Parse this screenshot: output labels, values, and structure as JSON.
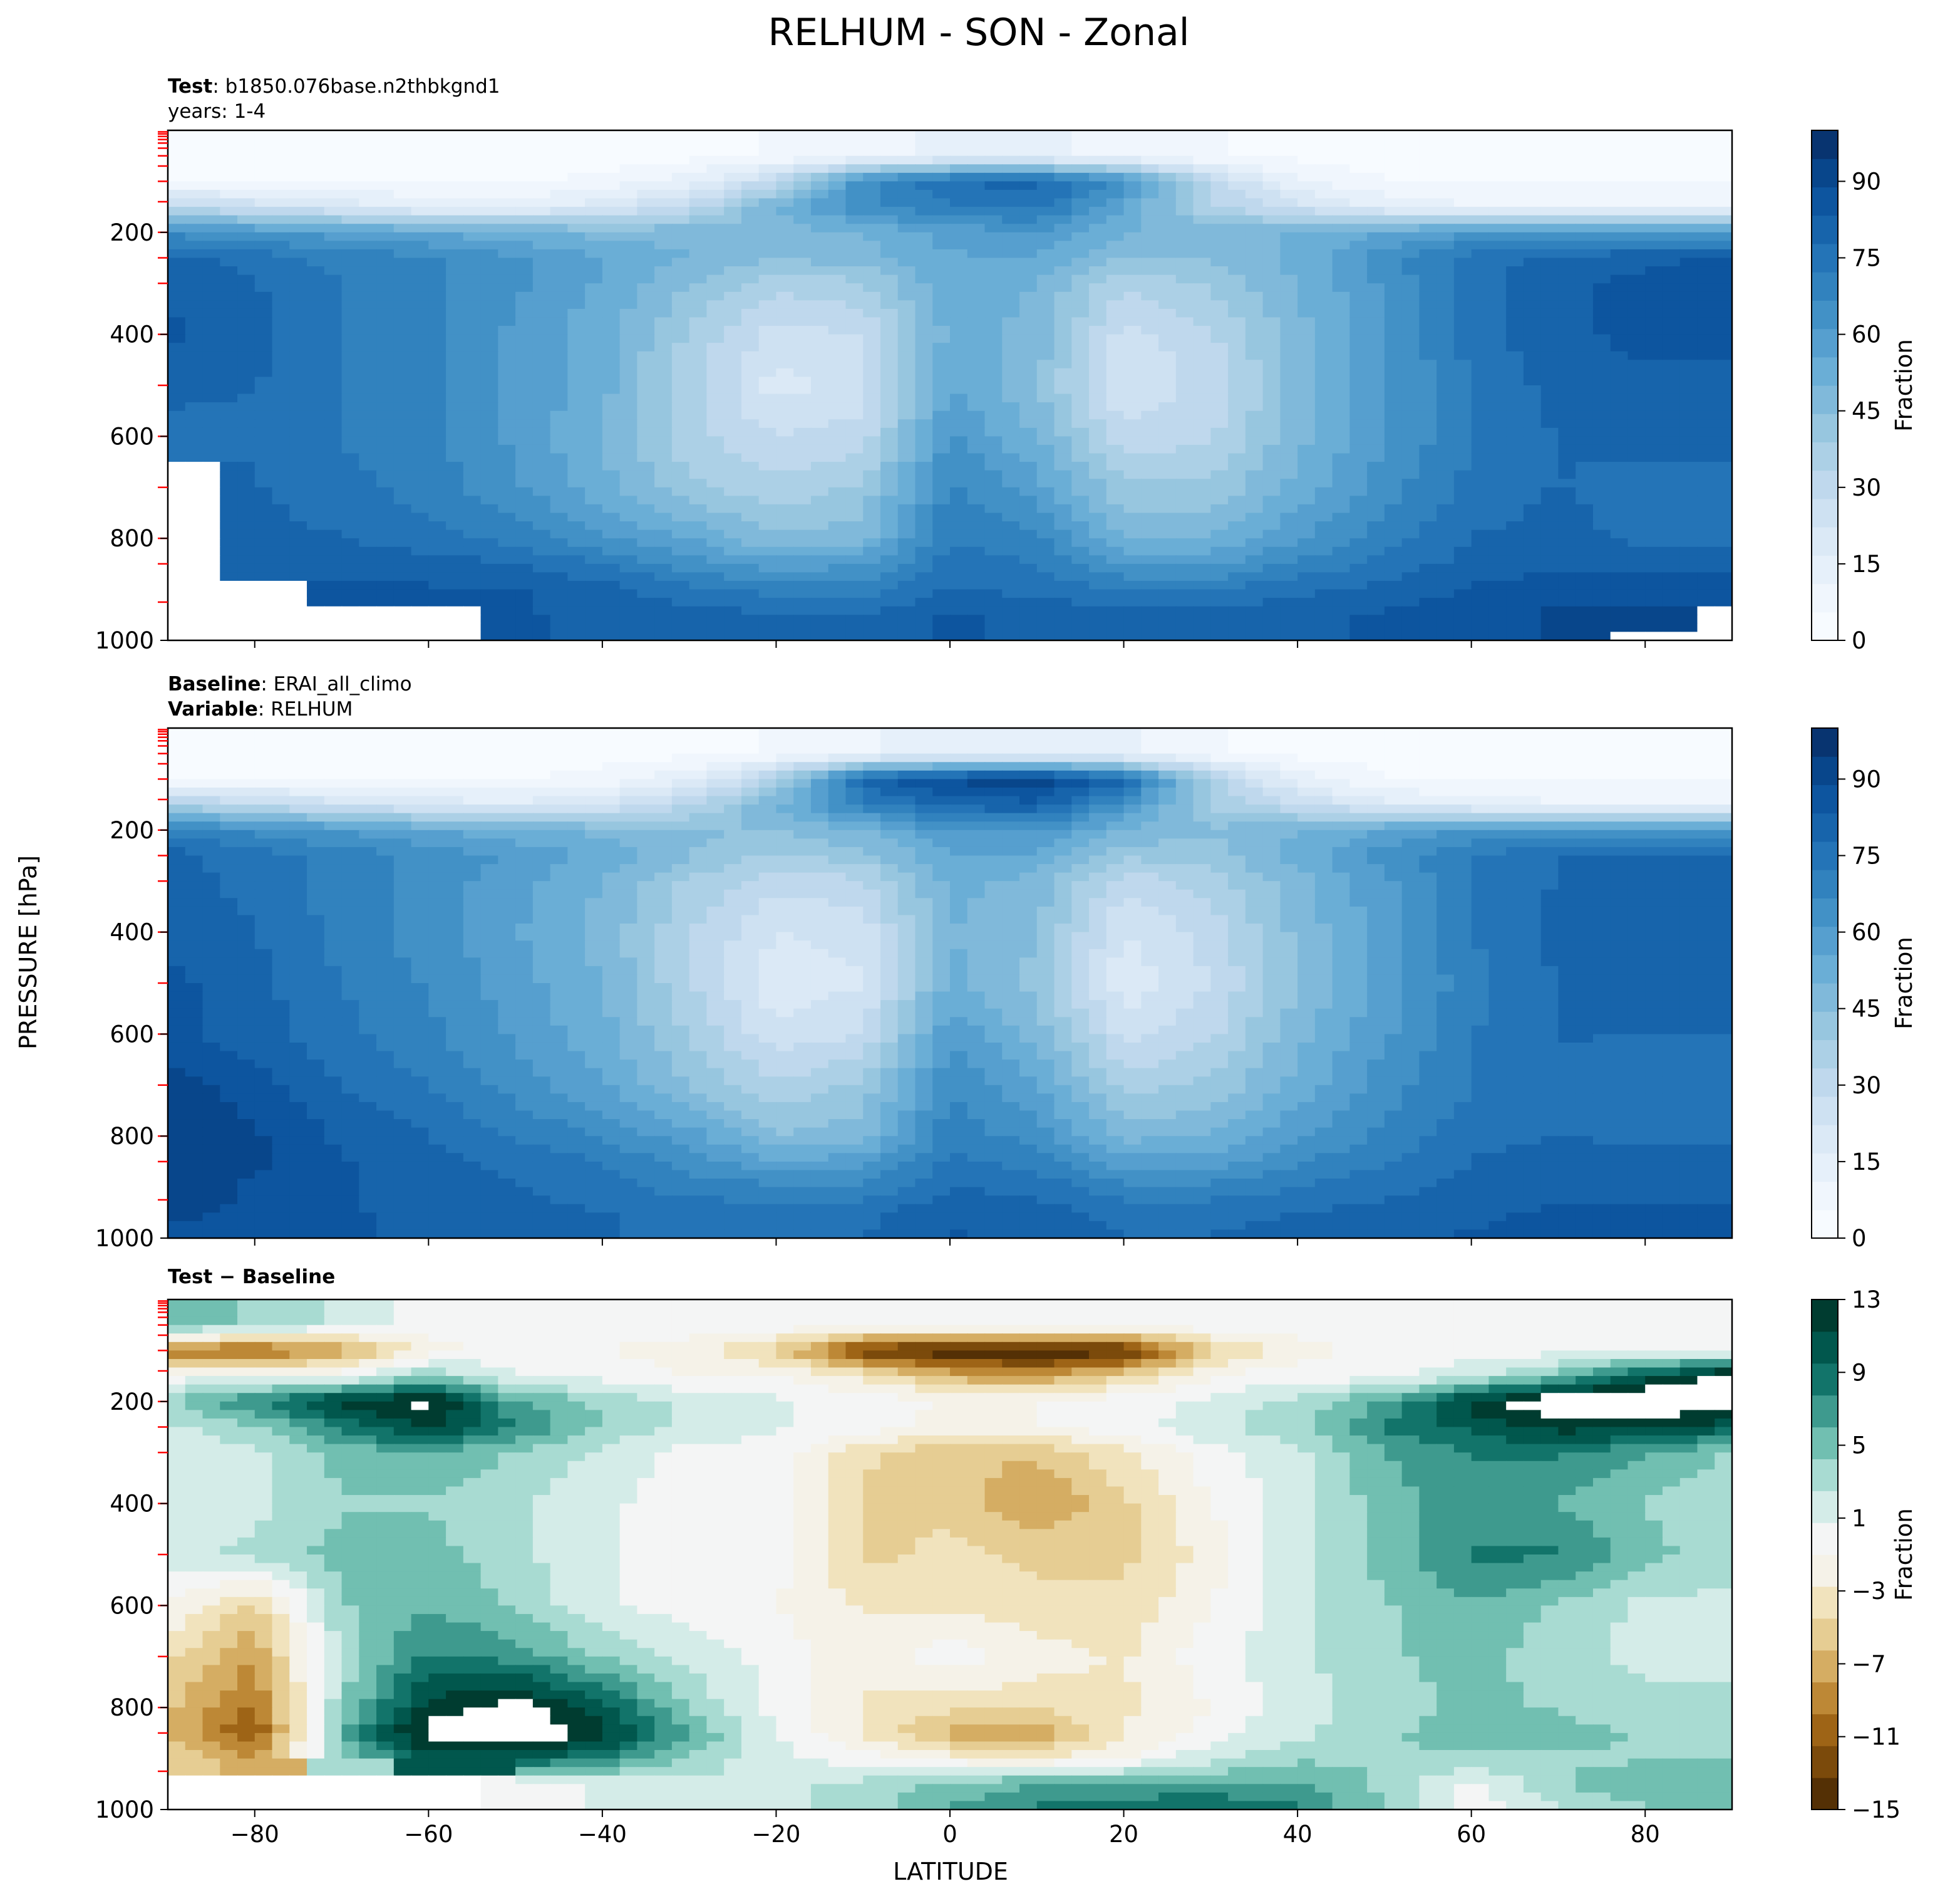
{
  "figure_title": "RELHUM - SON - Zonal",
  "y_axis_label": "PRESSURE [hPa]",
  "x_axis_label": "LATITUDE",
  "colors": {
    "blues": [
      "#f7fbff",
      "#f0f6fd",
      "#e6f0fa",
      "#dbe9f6",
      "#cee1f2",
      "#bfd8ed",
      "#acd0e6",
      "#97c6df",
      "#80b9da",
      "#6aaed6",
      "#569fcf",
      "#4291c6",
      "#3182be",
      "#2474b7",
      "#1764ab",
      "#0d559f",
      "#08468b",
      "#083470"
    ],
    "brbg": [
      "#543005",
      "#7b4a0b",
      "#9e6416",
      "#bd8836",
      "#d5ad63",
      "#e6cd93",
      "#f1e3bd",
      "#f5f2e8",
      "#f4f5f5",
      "#d4ece8",
      "#a8dbd2",
      "#71bfb1",
      "#3e9a8e",
      "#12746a",
      "#01574d",
      "#003c30"
    ],
    "masked_color": "#ffffff",
    "tick_marker_color": "#ff0000"
  },
  "panels": [
    {
      "title_bold": "Test",
      "title_text": ": b1850.076base.n2thbkgnd1",
      "title_line2": "years: 1-4",
      "title_line2_bold": "",
      "title_line2_text": "",
      "colorbar_label": "Fraction",
      "colorbar_ticks": [
        "0",
        "15",
        "30",
        "45",
        "60",
        "75",
        "90"
      ],
      "x_ticks_labeled": false
    },
    {
      "title_bold": "Baseline",
      "title_text": ": ERAI_all_climo",
      "title_line2": "",
      "title_line2_bold": "Variable",
      "title_line2_text": ": RELHUM",
      "colorbar_label": "Fraction",
      "colorbar_ticks": [
        "0",
        "15",
        "30",
        "45",
        "60",
        "75",
        "90"
      ],
      "x_ticks_labeled": false
    },
    {
      "title_bold": "Test − Baseline",
      "title_text": "",
      "title_line2": "",
      "title_line2_bold": "",
      "title_line2_text": "",
      "colorbar_label": "Fraction",
      "colorbar_ticks": [
        "13",
        "9",
        "5",
        "1",
        "−3",
        "−7",
        "−11",
        "−15"
      ],
      "x_ticks_labeled": true
    }
  ],
  "chart_data": [
    {
      "type": "heatmap",
      "name": "Test",
      "xlim": [
        -90,
        90
      ],
      "ylim": [
        1000,
        0
      ],
      "y_ticks": [
        200,
        400,
        600,
        800,
        1000
      ],
      "x_ticks": [
        -80,
        -60,
        -40,
        -20,
        0,
        20,
        40,
        60,
        80
      ],
      "colorbar_range": [
        0,
        100
      ],
      "latitude": [
        -90,
        -80,
        -70,
        -60,
        -50,
        -40,
        -30,
        -20,
        -10,
        0,
        10,
        20,
        30,
        40,
        50,
        60,
        70,
        80,
        90
      ],
      "pressure": [
        50,
        100,
        150,
        200,
        250,
        300,
        400,
        500,
        600,
        700,
        800,
        850,
        900,
        950,
        1000
      ],
      "values": [
        [
          3,
          3,
          3,
          3,
          3,
          3,
          4,
          6,
          10,
          12,
          12,
          10,
          6,
          4,
          3,
          3,
          3,
          3,
          3
        ],
        [
          6,
          6,
          5,
          5,
          5,
          7,
          14,
          30,
          65,
          78,
          80,
          65,
          30,
          12,
          6,
          5,
          5,
          5,
          5
        ],
        [
          30,
          25,
          20,
          15,
          15,
          20,
          30,
          50,
          65,
          72,
          75,
          55,
          35,
          25,
          15,
          12,
          10,
          10,
          10
        ],
        [
          65,
          62,
          58,
          55,
          52,
          48,
          48,
          48,
          50,
          58,
          60,
          50,
          48,
          50,
          55,
          60,
          62,
          60,
          58
        ],
        [
          80,
          75,
          70,
          68,
          62,
          55,
          50,
          45,
          48,
          55,
          55,
          45,
          45,
          52,
          65,
          75,
          80,
          82,
          85
        ],
        [
          82,
          78,
          72,
          68,
          62,
          55,
          45,
          35,
          38,
          55,
          50,
          35,
          40,
          50,
          62,
          75,
          82,
          85,
          85
        ],
        [
          85,
          80,
          72,
          68,
          60,
          52,
          38,
          25,
          28,
          52,
          48,
          25,
          32,
          48,
          60,
          75,
          82,
          85,
          85
        ],
        [
          80,
          78,
          72,
          68,
          60,
          52,
          35,
          20,
          25,
          55,
          45,
          22,
          30,
          46,
          60,
          72,
          80,
          82,
          82
        ],
        [
          75,
          76,
          72,
          68,
          60,
          50,
          35,
          28,
          30,
          62,
          50,
          30,
          32,
          48,
          60,
          72,
          78,
          80,
          80
        ],
        [
          null,
          78,
          74,
          70,
          62,
          52,
          40,
          35,
          40,
          68,
          58,
          40,
          40,
          52,
          64,
          74,
          78,
          75,
          75
        ],
        [
          null,
          80,
          78,
          74,
          70,
          62,
          55,
          45,
          48,
          72,
          68,
          50,
          50,
          60,
          70,
          78,
          80,
          76,
          76
        ],
        [
          null,
          82,
          82,
          80,
          78,
          72,
          64,
          58,
          60,
          75,
          72,
          60,
          60,
          68,
          74,
          80,
          82,
          82,
          82
        ],
        [
          null,
          null,
          84,
          84,
          84,
          80,
          74,
          70,
          70,
          78,
          76,
          72,
          72,
          76,
          80,
          84,
          86,
          86,
          86
        ],
        [
          null,
          null,
          null,
          null,
          84,
          82,
          80,
          78,
          78,
          84,
          82,
          80,
          80,
          82,
          84,
          86,
          90,
          90,
          null
        ],
        [
          null,
          null,
          null,
          null,
          84,
          82,
          80,
          80,
          80,
          84,
          82,
          80,
          80,
          82,
          84,
          86,
          90,
          null,
          null
        ]
      ]
    },
    {
      "type": "heatmap",
      "name": "Baseline",
      "xlim": [
        -90,
        90
      ],
      "ylim": [
        1000,
        0
      ],
      "y_ticks": [
        200,
        400,
        600,
        800,
        1000
      ],
      "x_ticks": [
        -80,
        -60,
        -40,
        -20,
        0,
        20,
        40,
        60,
        80
      ],
      "colorbar_range": [
        0,
        100
      ],
      "latitude": [
        -90,
        -80,
        -70,
        -60,
        -50,
        -40,
        -30,
        -20,
        -10,
        0,
        10,
        20,
        30,
        40,
        50,
        60,
        70,
        80,
        90
      ],
      "pressure": [
        50,
        100,
        150,
        200,
        250,
        300,
        400,
        500,
        600,
        700,
        800,
        850,
        900,
        950,
        1000
      ],
      "values": [
        [
          3,
          3,
          3,
          3,
          3,
          3,
          4,
          6,
          10,
          14,
          14,
          12,
          6,
          4,
          3,
          3,
          3,
          3,
          3
        ],
        [
          6,
          6,
          5,
          5,
          5,
          8,
          15,
          35,
          80,
          90,
          92,
          80,
          35,
          14,
          6,
          5,
          5,
          5,
          5
        ],
        [
          35,
          30,
          25,
          20,
          18,
          22,
          32,
          50,
          70,
          80,
          82,
          62,
          38,
          28,
          18,
          14,
          12,
          12,
          12
        ],
        [
          70,
          65,
          60,
          55,
          52,
          48,
          45,
          45,
          50,
          62,
          62,
          50,
          45,
          50,
          56,
          62,
          64,
          62,
          60
        ],
        [
          80,
          75,
          70,
          65,
          60,
          54,
          45,
          38,
          42,
          55,
          55,
          40,
          42,
          52,
          64,
          72,
          78,
          80,
          80
        ],
        [
          80,
          76,
          70,
          64,
          58,
          50,
          38,
          30,
          32,
          52,
          48,
          30,
          36,
          48,
          60,
          72,
          78,
          80,
          80
        ],
        [
          82,
          78,
          70,
          64,
          56,
          48,
          34,
          22,
          24,
          50,
          45,
          22,
          30,
          46,
          58,
          72,
          80,
          82,
          82
        ],
        [
          85,
          80,
          72,
          66,
          58,
          50,
          34,
          18,
          22,
          52,
          42,
          18,
          28,
          44,
          58,
          70,
          78,
          80,
          80
        ],
        [
          85,
          80,
          74,
          68,
          60,
          52,
          38,
          24,
          28,
          60,
          48,
          26,
          32,
          48,
          60,
          72,
          78,
          78,
          78
        ],
        [
          92,
          86,
          78,
          72,
          64,
          56,
          44,
          34,
          40,
          66,
          56,
          36,
          40,
          52,
          64,
          72,
          76,
          74,
          74
        ],
        [
          94,
          90,
          82,
          78,
          72,
          66,
          58,
          45,
          48,
          70,
          64,
          48,
          50,
          60,
          68,
          76,
          78,
          76,
          76
        ],
        [
          94,
          90,
          84,
          80,
          76,
          72,
          64,
          56,
          58,
          74,
          70,
          58,
          58,
          66,
          72,
          78,
          80,
          80,
          80
        ],
        [
          92,
          88,
          84,
          80,
          78,
          74,
          70,
          68,
          68,
          78,
          76,
          68,
          68,
          72,
          76,
          80,
          82,
          82,
          82
        ],
        [
          90,
          88,
          84,
          82,
          80,
          78,
          76,
          74,
          76,
          82,
          80,
          76,
          76,
          78,
          80,
          82,
          84,
          84,
          84
        ],
        [
          88,
          86,
          84,
          82,
          80,
          78,
          76,
          76,
          78,
          84,
          82,
          78,
          78,
          80,
          82,
          84,
          86,
          88,
          88
        ]
      ]
    },
    {
      "type": "heatmap",
      "name": "Test − Baseline",
      "xlim": [
        -90,
        90
      ],
      "ylim": [
        1000,
        0
      ],
      "y_ticks": [
        200,
        400,
        600,
        800,
        1000
      ],
      "x_ticks": [
        -80,
        -60,
        -40,
        -20,
        0,
        20,
        40,
        60,
        80
      ],
      "colorbar_range": [
        -15,
        13
      ],
      "latitude": [
        -90,
        -80,
        -70,
        -60,
        -50,
        -40,
        -30,
        -20,
        -10,
        0,
        10,
        20,
        30,
        40,
        50,
        60,
        70,
        80,
        90
      ],
      "pressure": [
        50,
        100,
        150,
        200,
        250,
        300,
        400,
        500,
        600,
        700,
        800,
        850,
        900,
        950,
        1000
      ],
      "values": [
        [
          6,
          4,
          2,
          0,
          0,
          0,
          0,
          0,
          0,
          0,
          0,
          0,
          0,
          0,
          0,
          0,
          0,
          0,
          0
        ],
        [
          -10,
          -11,
          -8,
          -2,
          0,
          -1,
          -2,
          -5,
          -13,
          -15,
          -16,
          -14,
          -5,
          -2,
          0,
          0,
          0,
          0,
          0
        ],
        [
          0,
          0,
          0,
          4,
          1,
          0,
          -1,
          -1,
          -3,
          -7,
          -8,
          -5,
          -1,
          0,
          0,
          2,
          5,
          10,
          14
        ],
        [
          4,
          8,
          12,
          14,
          6,
          4,
          2,
          1,
          0,
          -1,
          -1,
          0,
          1,
          3,
          6,
          12,
          15,
          16,
          14
        ],
        [
          2,
          4,
          8,
          12,
          8,
          4,
          2,
          1,
          0,
          -2,
          -1,
          0,
          2,
          4,
          8,
          10,
          12,
          12,
          10
        ],
        [
          1,
          2,
          5,
          6,
          4,
          2,
          0,
          0,
          -4,
          -6,
          -6,
          -3,
          0,
          2,
          6,
          8,
          8,
          6,
          4
        ],
        [
          1,
          2,
          4,
          4,
          3,
          1,
          0,
          0,
          -5,
          -5,
          -8,
          -5,
          -1,
          2,
          5,
          7,
          6,
          4,
          3
        ],
        [
          2,
          3,
          5,
          5,
          3,
          1,
          0,
          0,
          -5,
          -4,
          -5,
          -5,
          -2,
          2,
          5,
          8,
          8,
          5,
          3
        ],
        [
          -1,
          -5,
          4,
          6,
          4,
          1,
          0,
          -1,
          -3,
          -3,
          -4,
          -4,
          -1,
          2,
          4,
          6,
          4,
          2,
          2
        ],
        [
          -4,
          -8,
          3,
          8,
          7,
          4,
          2,
          0,
          -2,
          0,
          -2,
          -3,
          0,
          2,
          4,
          5,
          3,
          2,
          2
        ],
        [
          -6,
          -10,
          4,
          12,
          14,
          10,
          4,
          0,
          -3,
          -4,
          -4,
          -3,
          -1,
          2,
          3,
          5,
          4,
          3,
          3
        ],
        [
          -6,
          -12,
          6,
          14,
          16,
          12,
          6,
          1,
          -3,
          -7,
          -8,
          -3,
          0,
          2,
          4,
          5,
          5,
          4,
          4
        ],
        [
          -5,
          -8,
          4,
          10,
          10,
          8,
          4,
          1,
          0,
          -2,
          -3,
          -1,
          2,
          4,
          4,
          4,
          4,
          4,
          4
        ],
        [
          null,
          null,
          null,
          null,
          0,
          1,
          2,
          2,
          3,
          5,
          6,
          6,
          6,
          6,
          4,
          0,
          4,
          6,
          6
        ],
        [
          null,
          null,
          null,
          null,
          0,
          1,
          2,
          2,
          3,
          6,
          8,
          9,
          10,
          8,
          4,
          0,
          2,
          4,
          4
        ]
      ]
    }
  ]
}
